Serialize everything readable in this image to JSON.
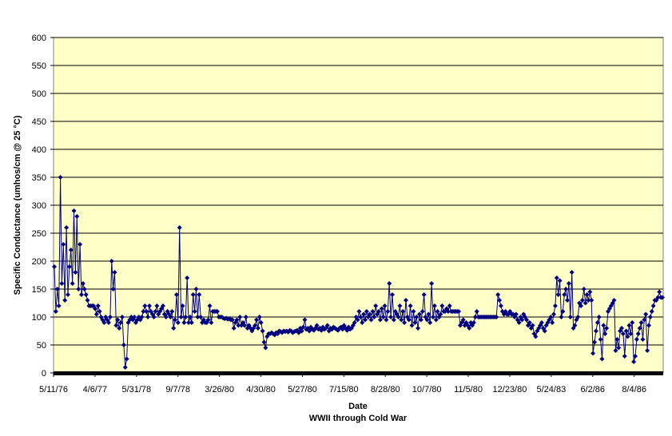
{
  "chart_data": {
    "type": "line",
    "title": "",
    "xlabel": "Date",
    "subtitle": "WWII through Cold War",
    "ylabel": "Specific Conductance (umhos/cm @ 25 °C)",
    "ylim": [
      0,
      600
    ],
    "yticks": [
      "0",
      "50",
      "100",
      "150",
      "200",
      "250",
      "300",
      "350",
      "400",
      "450",
      "500",
      "550",
      "600"
    ],
    "xticks": [
      "5/11/76",
      "4/6/77",
      "5/31/78",
      "9/7/78",
      "3/26/80",
      "4/30/80",
      "5/27/80",
      "7/15/80",
      "8/28/80",
      "10/7/80",
      "11/5/80",
      "12/23/80",
      "5/24/83",
      "6/2/86",
      "8/4/86"
    ],
    "grid": true,
    "legend": "none",
    "colors": {
      "plot_bg": "#ffffc8",
      "series": "#000080",
      "grid": "#000000"
    },
    "series": [
      {
        "name": "",
        "marker": "diamond",
        "values": [
          190,
          110,
          150,
          120,
          350,
          160,
          230,
          130,
          260,
          140,
          190,
          220,
          160,
          290,
          180,
          280,
          150,
          230,
          140,
          160,
          150,
          140,
          130,
          120,
          120,
          120,
          120,
          115,
          105,
          120,
          110,
          100,
          95,
          90,
          100,
          95,
          90,
          100,
          200,
          150,
          180,
          85,
          95,
          80,
          90,
          100,
          50,
          10,
          25,
          90,
          95,
          100,
          95,
          100,
          90,
          95,
          100,
          95,
          100,
          110,
          120,
          110,
          100,
          120,
          110,
          105,
          100,
          110,
          120,
          105,
          110,
          115,
          120,
          105,
          100,
          110,
          105,
          100,
          110,
          80,
          95,
          140,
          90,
          260,
          100,
          120,
          90,
          100,
          170,
          90,
          100,
          90,
          140,
          110,
          150,
          100,
          140,
          100,
          90,
          95,
          90,
          90,
          95,
          120,
          90,
          110,
          110,
          110,
          110,
          100,
          100,
          100,
          98,
          97,
          98,
          96,
          97,
          95,
          95,
          80,
          90,
          95,
          85,
          100,
          85,
          90,
          85,
          100,
          80,
          85,
          80,
          75,
          80,
          85,
          95,
          80,
          100,
          90,
          75,
          55,
          45,
          65,
          70,
          70,
          72,
          70,
          68,
          72,
          70,
          75,
          74,
          72,
          75,
          74,
          75,
          73,
          76,
          75,
          72,
          74,
          75,
          76,
          72,
          80,
          75,
          82,
          95,
          78,
          80,
          75,
          82,
          78,
          76,
          80,
          85,
          78,
          80,
          76,
          82,
          78,
          80,
          85,
          75,
          80,
          78,
          82,
          80,
          78,
          76,
          80,
          82,
          78,
          85,
          80,
          76,
          82,
          78,
          80,
          85,
          90,
          100,
          95,
          110,
          100,
          90,
          105,
          95,
          110,
          100,
          105,
          95,
          110,
          100,
          120,
          105,
          110,
          95,
          115,
          100,
          120,
          95,
          110,
          160,
          100,
          140,
          95,
          110,
          105,
          100,
          120,
          95,
          110,
          90,
          130,
          100,
          95,
          120,
          85,
          110,
          90,
          100,
          80,
          105,
          95,
          110,
          140,
          100,
          95,
          105,
          90,
          160,
          100,
          120,
          95,
          110,
          100,
          105,
          120,
          110,
          110,
          115,
          110,
          120,
          110,
          110,
          110,
          110,
          110,
          110,
          85,
          90,
          95,
          85,
          90,
          85,
          80,
          90,
          85,
          90,
          100,
          110,
          100,
          100,
          100,
          100,
          100,
          100,
          100,
          100,
          100,
          100,
          100,
          100,
          100,
          140,
          130,
          120,
          110,
          105,
          110,
          105,
          105,
          110,
          105,
          105,
          100,
          105,
          95,
          90,
          100,
          95,
          105,
          100,
          95,
          85,
          90,
          80,
          85,
          70,
          65,
          75,
          80,
          85,
          90,
          80,
          75,
          85,
          90,
          95,
          100,
          90,
          105,
          120,
          170,
          140,
          165,
          100,
          110,
          140,
          150,
          130,
          160,
          100,
          180,
          80,
          85,
          95,
          100,
          125,
          120,
          130,
          150,
          125,
          140,
          130,
          145,
          130,
          35,
          55,
          75,
          90,
          100,
          60,
          25,
          85,
          70,
          80,
          110,
          115,
          120,
          125,
          130,
          40,
          60,
          45,
          75,
          80,
          70,
          30,
          75,
          65,
          85,
          70,
          90,
          20,
          30,
          60,
          70,
          80,
          90,
          60,
          95,
          105,
          40,
          85,
          100,
          110,
          120,
          130,
          130,
          135,
          145,
          135,
          135
        ]
      }
    ]
  }
}
